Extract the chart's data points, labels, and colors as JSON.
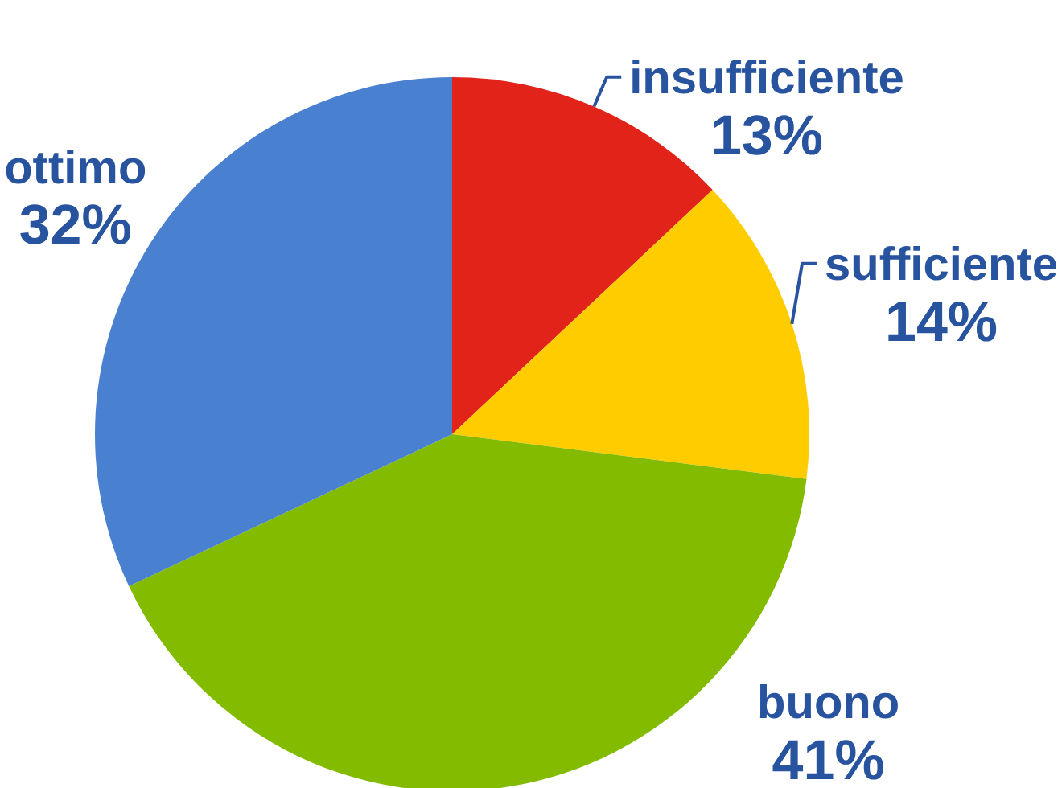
{
  "chart_data": {
    "type": "pie",
    "categories": [
      "insufficiente",
      "sufficiente",
      "buono",
      "ottimo"
    ],
    "values": [
      13,
      14,
      41,
      32
    ],
    "colors": [
      "#e2231a",
      "#ffcc00",
      "#83bb00",
      "#4a80d0"
    ],
    "value_labels": [
      "13%",
      "14%",
      "41%",
      "32%"
    ]
  }
}
